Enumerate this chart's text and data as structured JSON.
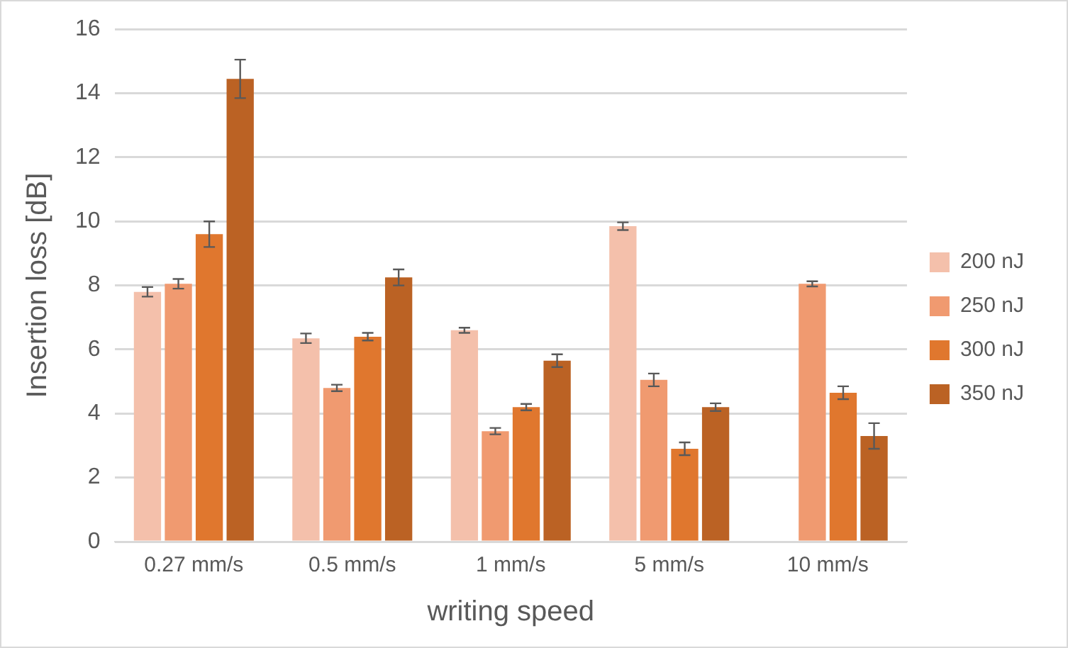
{
  "chart_data": {
    "type": "bar",
    "xlabel": "writing speed",
    "ylabel": "Insertion loss [dB]",
    "categories": [
      "0.27 mm/s",
      "0.5 mm/s",
      "1 mm/s",
      "5 mm/s",
      "10 mm/s"
    ],
    "series": [
      {
        "name": "200 nJ",
        "color": "#f4c0ab",
        "values": [
          7.8,
          6.35,
          6.6,
          9.85,
          null
        ],
        "errors": [
          0.15,
          0.15,
          0.08,
          0.12,
          null
        ]
      },
      {
        "name": "250 nJ",
        "color": "#f09a70",
        "values": [
          8.05,
          4.8,
          3.45,
          5.05,
          8.05
        ],
        "errors": [
          0.15,
          0.1,
          0.1,
          0.2,
          0.08
        ]
      },
      {
        "name": "300 nJ",
        "color": "#e0772e",
        "values": [
          9.6,
          6.4,
          4.2,
          2.9,
          4.65
        ],
        "errors": [
          0.4,
          0.12,
          0.1,
          0.2,
          0.2
        ]
      },
      {
        "name": "350 nJ",
        "color": "#bb6224",
        "values": [
          14.45,
          8.25,
          5.65,
          4.2,
          3.3
        ],
        "errors": [
          0.6,
          0.25,
          0.2,
          0.12,
          0.4
        ]
      }
    ],
    "ylim": [
      0,
      16
    ],
    "yticks": [
      0,
      2,
      4,
      6,
      8,
      10,
      12,
      14,
      16
    ],
    "grid": "y",
    "legend": "right"
  }
}
